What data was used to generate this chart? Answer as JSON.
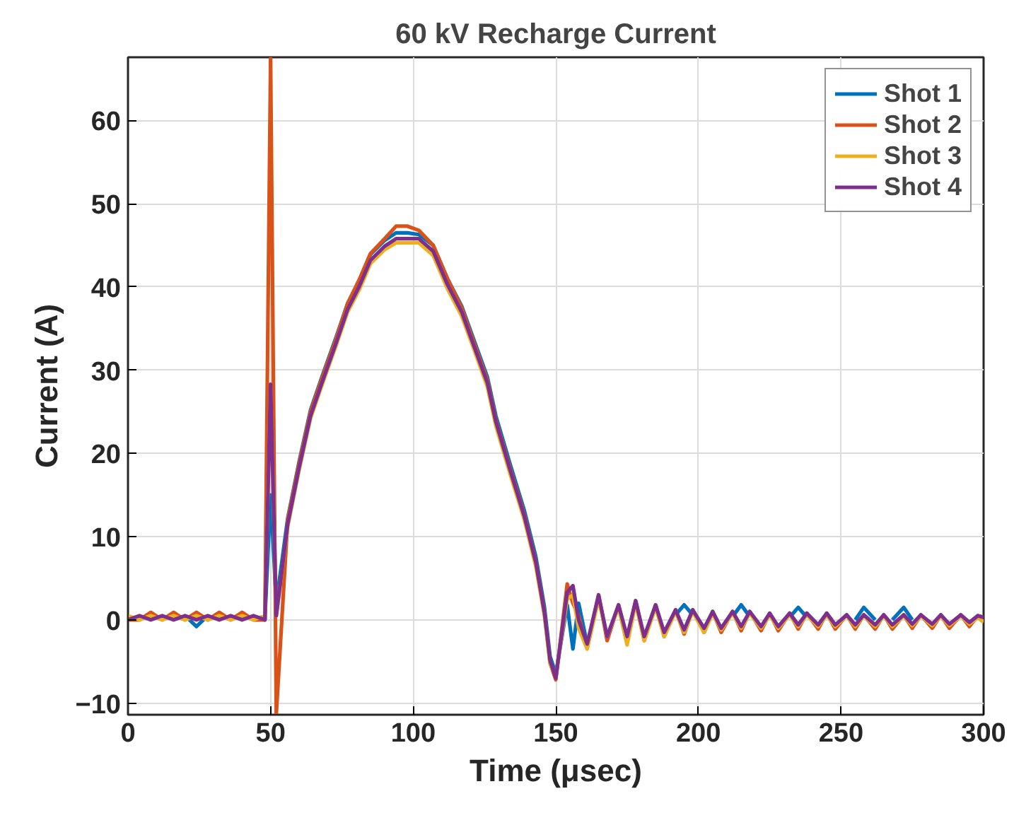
{
  "chart_data": {
    "type": "line",
    "title": "60 kV Recharge Current",
    "xlabel": "Time (μsec)",
    "ylabel": "Current (A)",
    "x": [
      0,
      4,
      8,
      12,
      16,
      20,
      24,
      28,
      32,
      36,
      40,
      44,
      48,
      50,
      52,
      56,
      60,
      64,
      68,
      73,
      77,
      81,
      85,
      90,
      94,
      98,
      102,
      107,
      112,
      117,
      121,
      126,
      129,
      134,
      139,
      143,
      146,
      148,
      150,
      154,
      156,
      158,
      161,
      165,
      168,
      172,
      175,
      178,
      181,
      185,
      188,
      192,
      195,
      198,
      202,
      205,
      208,
      212,
      215,
      218,
      222,
      225,
      228,
      232,
      235,
      238,
      242,
      245,
      248,
      252,
      255,
      258,
      262,
      265,
      268,
      272,
      275,
      278,
      282,
      285,
      288,
      292,
      295,
      298,
      300
    ],
    "series": [
      {
        "name": "Shot 1",
        "color": "#0072bd",
        "values": [
          null,
          null,
          null,
          null,
          null,
          0.5,
          -0.8,
          0.5,
          null,
          null,
          null,
          null,
          0,
          15,
          2,
          12.2,
          19,
          25.2,
          29.2,
          34,
          38,
          40.7,
          43.9,
          45.6,
          46.5,
          46.5,
          46.3,
          45,
          41,
          37.7,
          33.9,
          29.2,
          24.5,
          18.7,
          13.1,
          7.6,
          1.6,
          -4.4,
          -6.5,
          1.8,
          -3.5,
          2,
          -2.9,
          null,
          null,
          null,
          null,
          null,
          null,
          null,
          null,
          0.6,
          1.8,
          0.6,
          null,
          null,
          null,
          0.4,
          1.8,
          0.4,
          null,
          null,
          null,
          0.3,
          1.5,
          0.3,
          null,
          null,
          null,
          null,
          0,
          1.5,
          0,
          null,
          0,
          1.5,
          0,
          null,
          null,
          null,
          null,
          null,
          null,
          null,
          null
        ]
      },
      {
        "name": "Shot 2",
        "color": "#d95319",
        "values": [
          0,
          0,
          0.9,
          0,
          0.9,
          0,
          0.9,
          0,
          0.9,
          0,
          0.9,
          0,
          0,
          67.5,
          -11.3,
          12,
          18.8,
          25,
          29,
          33.8,
          38,
          40.8,
          44,
          45.8,
          47.3,
          47.3,
          46.8,
          45,
          41,
          37.5,
          33.6,
          28.8,
          24,
          18.2,
          12.6,
          7,
          1,
          -5.2,
          -7.2,
          4.3,
          2,
          0.5,
          -3.4,
          3,
          -2.5,
          1.8,
          -2.5,
          2.3,
          -2.5,
          1.8,
          -2,
          1.2,
          -1.7,
          1.2,
          -1.5,
          1,
          -1.5,
          1,
          -1.3,
          1,
          -1.3,
          0.8,
          -1.3,
          0.8,
          -1.1,
          0.8,
          -1.1,
          0.8,
          -1.1,
          0.6,
          -1.1,
          0.6,
          -1.1,
          0.6,
          -1.1,
          0.6,
          -1,
          0.6,
          -1,
          0.6,
          -1,
          0.6,
          -0.8,
          0.5,
          0.3
        ]
      },
      {
        "name": "Shot 3",
        "color": "#edb120",
        "values": [
          0.5,
          0,
          0.5,
          0,
          0.5,
          0,
          0.5,
          0,
          0.5,
          0,
          0.5,
          0,
          0.5,
          28,
          0.5,
          11.2,
          18,
          24.2,
          28.2,
          33,
          37,
          39.6,
          42.8,
          44.5,
          45.3,
          45.3,
          45.3,
          43.8,
          39.8,
          36.5,
          32.8,
          28,
          23.3,
          17.5,
          12,
          6.4,
          0.5,
          -5.3,
          -6.8,
          2.5,
          3,
          -1,
          -3.5,
          2.5,
          -2,
          1.5,
          -3,
          2,
          -2.5,
          1.5,
          -2,
          1,
          -1.5,
          1,
          -1.5,
          0.8,
          -1.2,
          0.8,
          -1,
          0.8,
          -1,
          0.6,
          -1,
          0.6,
          -0.8,
          0.6,
          -0.8,
          0.6,
          -0.8,
          0.5,
          -0.8,
          0.5,
          -0.8,
          0.5,
          -0.8,
          0.5,
          -0.7,
          0.5,
          -0.7,
          0.5,
          -0.7,
          0.5,
          -0.5,
          0.3,
          -0.3
        ]
      },
      {
        "name": "Shot 4",
        "color": "#7e2f8e",
        "values": [
          0,
          0.5,
          0,
          0.5,
          0,
          0.5,
          0,
          0.5,
          0,
          0.5,
          0,
          0.5,
          0,
          28.3,
          0.5,
          11.5,
          18.3,
          24.5,
          28.5,
          33.3,
          37.3,
          40,
          43.2,
          44.9,
          45.8,
          45.8,
          45.8,
          44.3,
          40.3,
          37,
          33.2,
          28.5,
          23.8,
          18,
          12.4,
          6.9,
          0.9,
          -4.9,
          -7,
          3.3,
          4.1,
          0,
          -2.9,
          3,
          -2,
          1.8,
          -2,
          2.3,
          -2,
          1.8,
          -1.5,
          1.2,
          -1.2,
          1.2,
          -1,
          1,
          -1,
          1,
          -0.8,
          1,
          -0.8,
          0.8,
          -0.8,
          0.8,
          -0.6,
          0.8,
          -0.6,
          0.8,
          -0.6,
          0.6,
          -0.6,
          0.6,
          -0.6,
          0.6,
          -0.6,
          0.6,
          -0.5,
          0.6,
          -0.5,
          0.6,
          -0.5,
          0.6,
          -0.3,
          0.5,
          0.3
        ]
      }
    ],
    "xlim": [
      0,
      300
    ],
    "ylim": [
      -11.4,
      67.6
    ],
    "xticks": [
      0,
      50,
      100,
      150,
      200,
      250,
      300
    ],
    "yticks": [
      -10,
      0,
      10,
      20,
      30,
      40,
      50,
      60
    ],
    "grid": true,
    "legend": "top right",
    "line_style": "solid"
  }
}
